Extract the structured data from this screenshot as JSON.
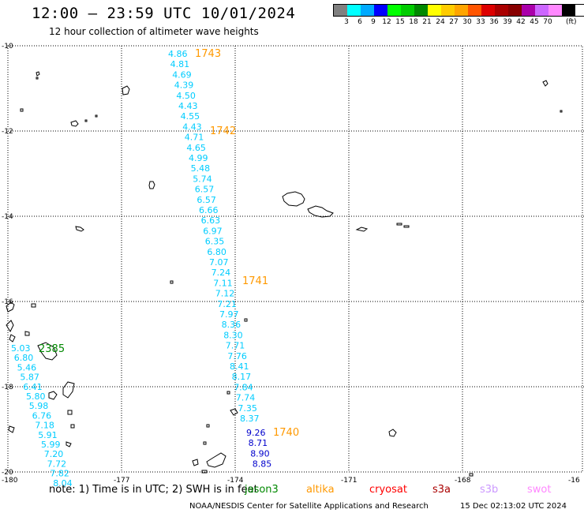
{
  "title": "12:00 – 23:59 UTC 10/01/2024",
  "subtitle": "12 hour collection of altimeter wave heights",
  "legend": {
    "colors": [
      "#808080",
      "#00ffff",
      "#00aaff",
      "#0000ff",
      "#00ff00",
      "#00cc00",
      "#008800",
      "#ffff00",
      "#ffcc00",
      "#ffa500",
      "#ff5500",
      "#dd0000",
      "#aa0000",
      "#880000",
      "#aa00aa",
      "#cc66ff",
      "#ff88ff",
      "#000000"
    ],
    "labels": [
      "3",
      "6",
      "9",
      "12",
      "15",
      "18",
      "21",
      "24",
      "27",
      "30",
      "33",
      "36",
      "39",
      "42",
      "45",
      "70"
    ],
    "unit": "(ft)"
  },
  "map": {
    "lon_range": [
      -180,
      -165
    ],
    "lat_range": [
      -20,
      -10
    ],
    "lon_ticks": [
      "-180",
      "-177",
      "-174",
      "-171",
      "-168",
      "-16"
    ],
    "lat_ticks": [
      "-10",
      "-12",
      "-14",
      "-16",
      "-18",
      "-20"
    ],
    "grid": "dotted",
    "passes": [
      {
        "id": "1743",
        "color": "#00ccff",
        "values": [
          "4.86",
          "4.81",
          "4.69",
          "4.39",
          "4.50",
          "4.43",
          "4.55",
          "4.43",
          "4.71",
          "4.65",
          "4.99",
          "5.48",
          "5.74",
          "6.57",
          "6.57",
          "6.66",
          "6.63",
          "6.97",
          "6.35",
          "6.80",
          "7.07",
          "7.24",
          "7.11",
          "7.12",
          "7.21",
          "7.97",
          "8.36",
          "8.30",
          "7.71",
          "7.76",
          "8.41",
          "8.17",
          "7.84",
          "7.74",
          "7.35",
          "8.37"
        ]
      },
      {
        "id": "1740",
        "color": "#00ccff",
        "values": [
          "9.26",
          "8.71",
          "8.90",
          "8.85"
        ]
      },
      {
        "id": "2385",
        "color": "#00ccff",
        "values": [
          "5.03",
          "6.80",
          "5.46",
          "5.87",
          "6.41",
          "5.80",
          "5.98",
          "6.76",
          "7.18",
          "5.91",
          "5.99",
          "7.20",
          "7.72",
          "7.82",
          "8.04"
        ]
      }
    ],
    "pass_labels": [
      {
        "text": "1743",
        "color": "#ff9900"
      },
      {
        "text": "1742",
        "color": "#ff9900"
      },
      {
        "text": "1741",
        "color": "#ff9900"
      },
      {
        "text": "1740",
        "color": "#ff9900"
      },
      {
        "text": "2385",
        "color": "#008800"
      }
    ]
  },
  "note": {
    "text": "note:  1) Time is in UTC; 2) SWH is in feet",
    "satellites": [
      {
        "name": "jason3",
        "color": "#008800"
      },
      {
        "name": "altika",
        "color": "#ff9900"
      },
      {
        "name": "cryosat",
        "color": "#ff0000"
      },
      {
        "name": "s3a",
        "color": "#aa0000"
      },
      {
        "name": "s3b",
        "color": "#cc99ff"
      },
      {
        "name": "swot",
        "color": "#ff88ff"
      }
    ]
  },
  "credit": "NOAA/NESDIS Center for Satellite Applications and Research",
  "credit_date": "15 Dec 02:13:02 UTC 2024"
}
